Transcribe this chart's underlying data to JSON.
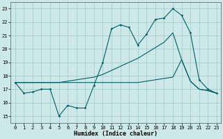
{
  "xlabel": "Humidex (Indice chaleur)",
  "xlim": [
    -0.5,
    23.5
  ],
  "ylim": [
    14.5,
    23.5
  ],
  "yticks": [
    15,
    16,
    17,
    18,
    19,
    20,
    21,
    22,
    23
  ],
  "xticks": [
    0,
    1,
    2,
    3,
    4,
    5,
    6,
    7,
    8,
    9,
    10,
    11,
    12,
    13,
    14,
    15,
    16,
    17,
    18,
    19,
    20,
    21,
    22,
    23
  ],
  "bg_color": "#cce8e8",
  "grid_color": "#aacccc",
  "line_color": "#006060",
  "line1_y": [
    17.5,
    16.7,
    16.8,
    17.0,
    17.0,
    15.0,
    15.8,
    15.6,
    15.6,
    17.3,
    19.0,
    21.5,
    21.8,
    21.6,
    20.3,
    21.1,
    22.2,
    22.3,
    23.0,
    22.5,
    21.2,
    17.7,
    17.0,
    16.7
  ],
  "line2_y": [
    17.5,
    17.5,
    17.5,
    17.5,
    17.5,
    17.5,
    17.6,
    17.7,
    17.8,
    17.9,
    18.1,
    18.4,
    18.7,
    19.0,
    19.3,
    19.7,
    20.1,
    20.5,
    21.2,
    19.2,
    17.6,
    17.0,
    16.9,
    16.7
  ],
  "line3_y": [
    17.5,
    17.5,
    17.5,
    17.5,
    17.5,
    17.5,
    17.5,
    17.5,
    17.5,
    17.5,
    17.5,
    17.5,
    17.5,
    17.5,
    17.5,
    17.6,
    17.7,
    17.8,
    17.9,
    19.2,
    17.6,
    17.0,
    16.9,
    16.7
  ]
}
